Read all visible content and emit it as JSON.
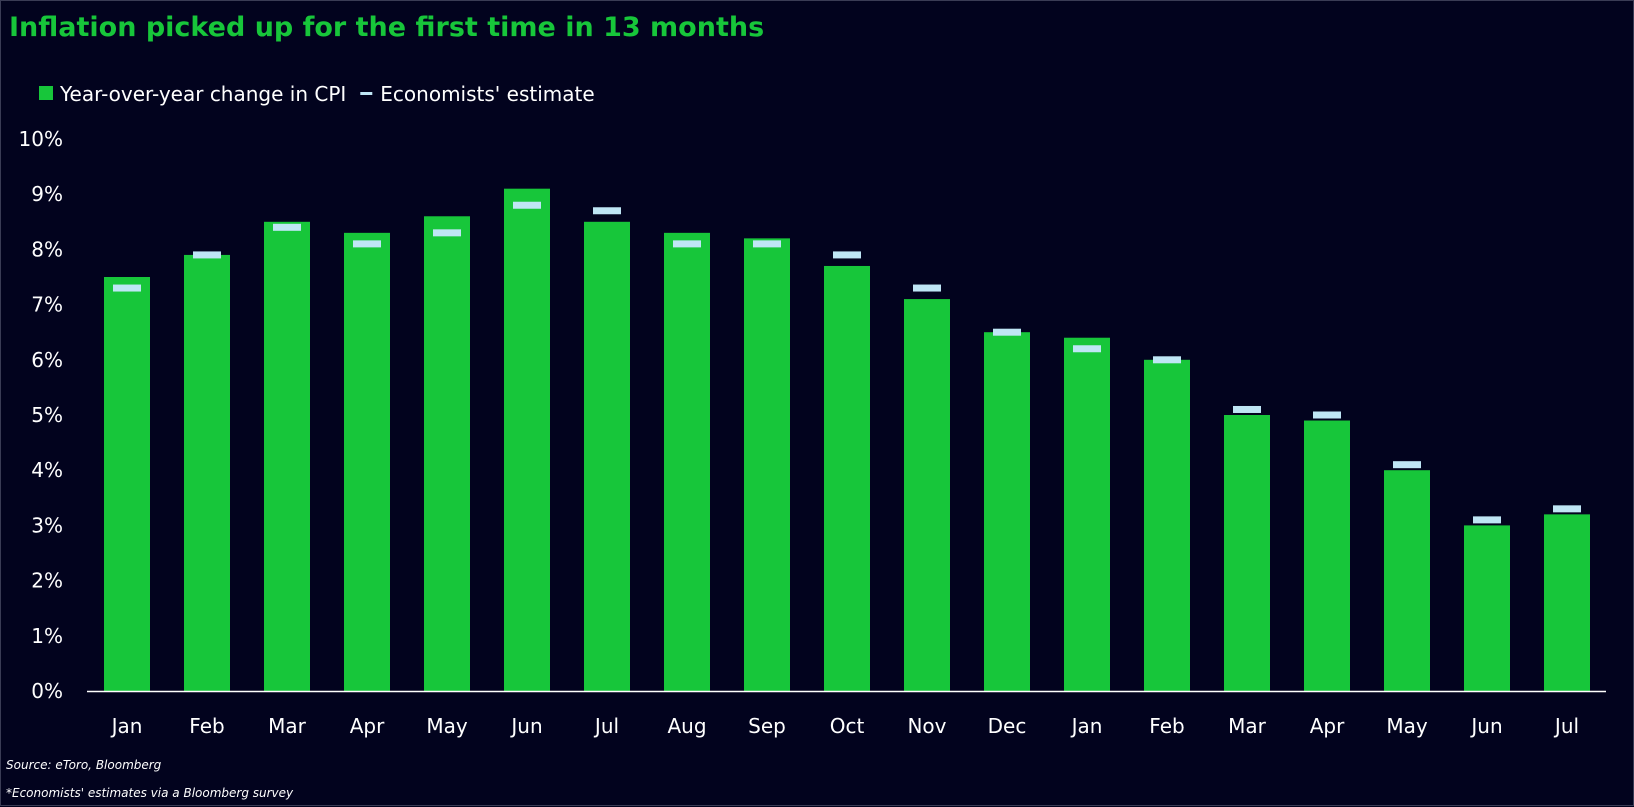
{
  "chart_data": {
    "type": "bar",
    "title": "Inflation picked up for the first time in 13 months",
    "xlabel": "",
    "ylabel": "",
    "categories": [
      "Jan",
      "Feb",
      "Mar",
      "Apr",
      "May",
      "Jun",
      "Jul",
      "Aug",
      "Sep",
      "Oct",
      "Nov",
      "Dec",
      "Jan",
      "Feb",
      "Mar",
      "Apr",
      "May",
      "Jun",
      "Jul"
    ],
    "series": [
      {
        "name": "Year-over-year change in CPI",
        "kind": "bar",
        "color": "#17c63a",
        "values": [
          7.5,
          7.9,
          8.5,
          8.3,
          8.6,
          9.1,
          8.5,
          8.3,
          8.2,
          7.7,
          7.1,
          6.5,
          6.4,
          6.0,
          5.0,
          4.9,
          4.0,
          3.0,
          3.2
        ]
      },
      {
        "name": "Economists' estimate",
        "kind": "marker",
        "color": "#bfe6f5",
        "values": [
          7.3,
          7.9,
          8.4,
          8.1,
          8.3,
          8.8,
          8.7,
          8.1,
          8.1,
          7.9,
          7.3,
          6.5,
          6.2,
          6.0,
          5.1,
          5.0,
          4.1,
          3.1,
          3.3
        ]
      }
    ],
    "ylim": [
      0,
      10
    ],
    "yticks": [
      0,
      1,
      2,
      3,
      4,
      5,
      6,
      7,
      8,
      9,
      10
    ],
    "ytick_suffix": "%",
    "grid": false,
    "legend": "top-left"
  },
  "footnotes": {
    "source": "Source: eToro, Bloomberg",
    "note": "*Economists' estimates via a Bloomberg survey"
  },
  "colors": {
    "background": "#02031e",
    "title": "#17c63a",
    "axis": "#ffffff"
  }
}
